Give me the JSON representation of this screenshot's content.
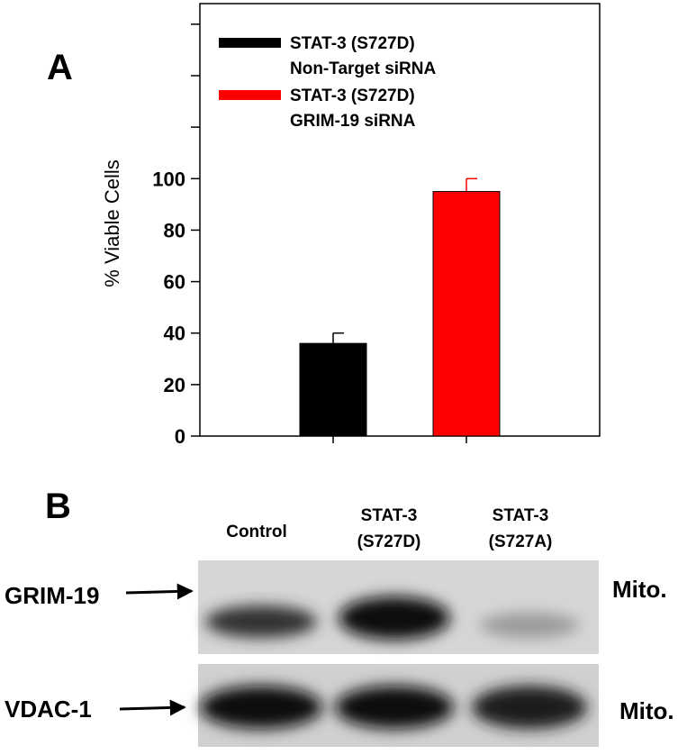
{
  "chart_data": {
    "type": "bar",
    "panel_label": "A",
    "ylabel": "% Viable Cells",
    "categories": [
      null,
      null
    ],
    "series": [
      {
        "name": "STAT-3 (S727D)\nNon-Target siRNA",
        "color": "#000000",
        "values": [
          36,
          null
        ],
        "errors": [
          4,
          null
        ]
      },
      {
        "name": "STAT-3 (S727D)\nGRIM-19 siRNA",
        "color": "#ff0000",
        "values": [
          null,
          95
        ],
        "errors": [
          null,
          5
        ]
      }
    ],
    "ylim": [
      0,
      168
    ],
    "yticks": [
      0,
      20,
      40,
      60,
      80,
      100
    ],
    "minor_yticks": [
      120,
      140,
      160
    ],
    "grid": false,
    "legend": "top-left"
  },
  "blot": {
    "panel_label": "B",
    "lanes": [
      "Control",
      "STAT-3\n(S727D)",
      "STAT-3\n(S727A)"
    ],
    "rows": [
      {
        "label": "GRIM-19",
        "fraction": "Mito."
      },
      {
        "label": "VDAC-1",
        "fraction": "Mito."
      }
    ]
  }
}
